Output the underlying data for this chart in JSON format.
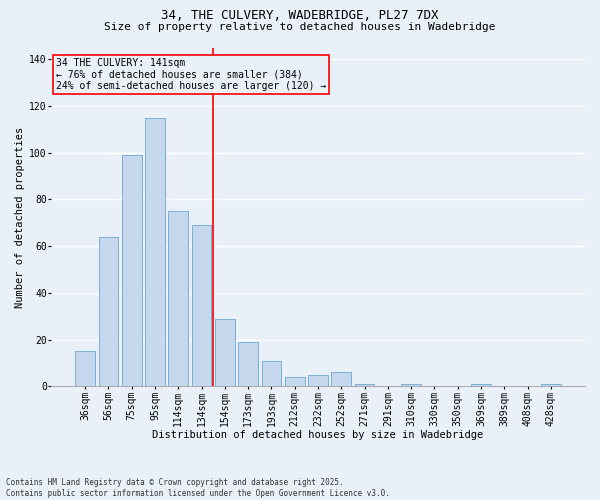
{
  "title_line1": "34, THE CULVERY, WADEBRIDGE, PL27 7DX",
  "title_line2": "Size of property relative to detached houses in Wadebridge",
  "xlabel": "Distribution of detached houses by size in Wadebridge",
  "ylabel": "Number of detached properties",
  "categories": [
    "36sqm",
    "56sqm",
    "75sqm",
    "95sqm",
    "114sqm",
    "134sqm",
    "154sqm",
    "173sqm",
    "193sqm",
    "212sqm",
    "232sqm",
    "252sqm",
    "271sqm",
    "291sqm",
    "310sqm",
    "330sqm",
    "350sqm",
    "369sqm",
    "389sqm",
    "408sqm",
    "428sqm"
  ],
  "values": [
    15,
    64,
    99,
    115,
    75,
    69,
    29,
    19,
    11,
    4,
    5,
    6,
    1,
    0,
    1,
    0,
    0,
    1,
    0,
    0,
    1
  ],
  "bar_color": "#c5d8ed",
  "bar_edge_color": "#7bafd4",
  "background_color": "#eaf0f8",
  "grid_color": "#ffffff",
  "red_line_x": 5.5,
  "annotation_title": "34 THE CULVERY: 141sqm",
  "annotation_line1": "← 76% of detached houses are smaller (384)",
  "annotation_line2": "24% of semi-detached houses are larger (120) →",
  "footnote_line1": "Contains HM Land Registry data © Crown copyright and database right 2025.",
  "footnote_line2": "Contains public sector information licensed under the Open Government Licence v3.0.",
  "ylim": [
    0,
    145
  ],
  "yticks": [
    0,
    20,
    40,
    60,
    80,
    100,
    120,
    140
  ],
  "title1_fontsize": 9,
  "title2_fontsize": 8,
  "axis_label_fontsize": 7.5,
  "tick_fontsize": 7,
  "annotation_fontsize": 7,
  "footnote_fontsize": 5.5
}
